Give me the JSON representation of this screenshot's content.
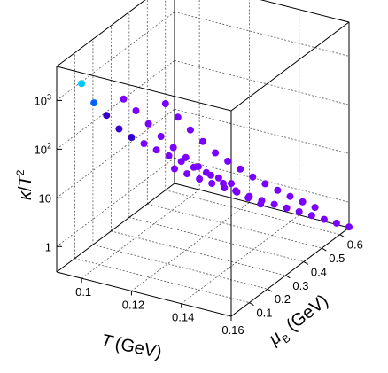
{
  "chart_data": {
    "type": "scatter",
    "projection": "3d",
    "xlabel": "T (GeV)",
    "ylabel": "μ_B (GeV)",
    "zlabel": "κ/T^2",
    "z_scale": "log",
    "grid": true,
    "x_ticks": [
      "0.1",
      "0.12",
      "0.14",
      "0.16"
    ],
    "y_ticks": [
      "0.1",
      "0.2",
      "0.3",
      "0.4",
      "0.5",
      "0.6"
    ],
    "z_ticks": [
      "1",
      "10",
      "10^2",
      "10^3"
    ],
    "xlim": [
      0.09,
      0.16
    ],
    "ylim": [
      0.0,
      0.65
    ],
    "zlim": [
      0.3,
      5000
    ],
    "colormap": [
      "#7a00ff",
      "#3300cc",
      "#0060ff",
      "#00c8ff",
      "#33ff66",
      "#ff0000"
    ],
    "series": [
      {
        "mu_b": 0.0,
        "points": [
          {
            "t": 0.1,
            "kappa_over_t2": 3000
          },
          {
            "t": 0.105,
            "kappa_over_t2": 1400
          },
          {
            "t": 0.11,
            "kappa_over_t2": 900
          },
          {
            "t": 0.115,
            "kappa_over_t2": 550
          },
          {
            "t": 0.12,
            "kappa_over_t2": 430
          },
          {
            "t": 0.125,
            "kappa_over_t2": 370
          },
          {
            "t": 0.13,
            "kappa_over_t2": 320
          },
          {
            "t": 0.135,
            "kappa_over_t2": 280
          },
          {
            "t": 0.14,
            "kappa_over_t2": 250
          },
          {
            "t": 0.145,
            "kappa_over_t2": 220
          },
          {
            "t": 0.15,
            "kappa_over_t2": 200
          },
          {
            "t": 0.155,
            "kappa_over_t2": 180
          },
          {
            "t": 0.16,
            "kappa_over_t2": 160
          }
        ]
      },
      {
        "mu_b": 0.3,
        "points": [
          {
            "t": 0.095,
            "kappa_over_t2": 180
          },
          {
            "t": 0.1,
            "kappa_over_t2": 120
          },
          {
            "t": 0.105,
            "kappa_over_t2": 75
          },
          {
            "t": 0.11,
            "kappa_over_t2": 48
          },
          {
            "t": 0.115,
            "kappa_over_t2": 33
          },
          {
            "t": 0.12,
            "kappa_over_t2": 24
          },
          {
            "t": 0.125,
            "kappa_over_t2": 18
          },
          {
            "t": 0.13,
            "kappa_over_t2": 14
          },
          {
            "t": 0.135,
            "kappa_over_t2": 11
          },
          {
            "t": 0.14,
            "kappa_over_t2": 9
          },
          {
            "t": 0.145,
            "kappa_over_t2": 7.5
          },
          {
            "t": 0.15,
            "kappa_over_t2": 6.5
          }
        ]
      },
      {
        "mu_b": 0.6,
        "points": [
          {
            "t": 0.09,
            "kappa_over_t2": 18
          },
          {
            "t": 0.095,
            "kappa_over_t2": 11
          },
          {
            "t": 0.1,
            "kappa_over_t2": 7
          },
          {
            "t": 0.105,
            "kappa_over_t2": 4.7
          },
          {
            "t": 0.11,
            "kappa_over_t2": 3.2
          },
          {
            "t": 0.115,
            "kappa_over_t2": 2.5
          },
          {
            "t": 0.12,
            "kappa_over_t2": 2.0
          },
          {
            "t": 0.125,
            "kappa_over_t2": 1.6
          },
          {
            "t": 0.13,
            "kappa_over_t2": 1.35
          },
          {
            "t": 0.135,
            "kappa_over_t2": 1.15
          },
          {
            "t": 0.14,
            "kappa_over_t2": 1.0
          },
          {
            "t": 0.145,
            "kappa_over_t2": 0.9
          },
          {
            "t": 0.15,
            "kappa_over_t2": 0.8
          }
        ]
      },
      {
        "mu_b": 0.65,
        "points": [
          {
            "t": 0.09,
            "kappa_over_t2": 0.6
          },
          {
            "t": 0.095,
            "kappa_over_t2": 0.55
          },
          {
            "t": 0.1,
            "kappa_over_t2": 0.5
          },
          {
            "t": 0.105,
            "kappa_over_t2": 0.47
          },
          {
            "t": 0.11,
            "kappa_over_t2": 0.44
          },
          {
            "t": 0.115,
            "kappa_over_t2": 0.42
          },
          {
            "t": 0.12,
            "kappa_over_t2": 0.4
          },
          {
            "t": 0.125,
            "kappa_over_t2": 0.38
          },
          {
            "t": 0.13,
            "kappa_over_t2": 0.37
          },
          {
            "t": 0.135,
            "kappa_over_t2": 0.36
          },
          {
            "t": 0.14,
            "kappa_over_t2": 0.35
          },
          {
            "t": 0.145,
            "kappa_over_t2": 0.34
          },
          {
            "t": 0.15,
            "kappa_over_t2": 0.33
          },
          {
            "t": 0.155,
            "kappa_over_t2": 0.32
          },
          {
            "t": 0.16,
            "kappa_over_t2": 0.31
          }
        ]
      }
    ]
  }
}
